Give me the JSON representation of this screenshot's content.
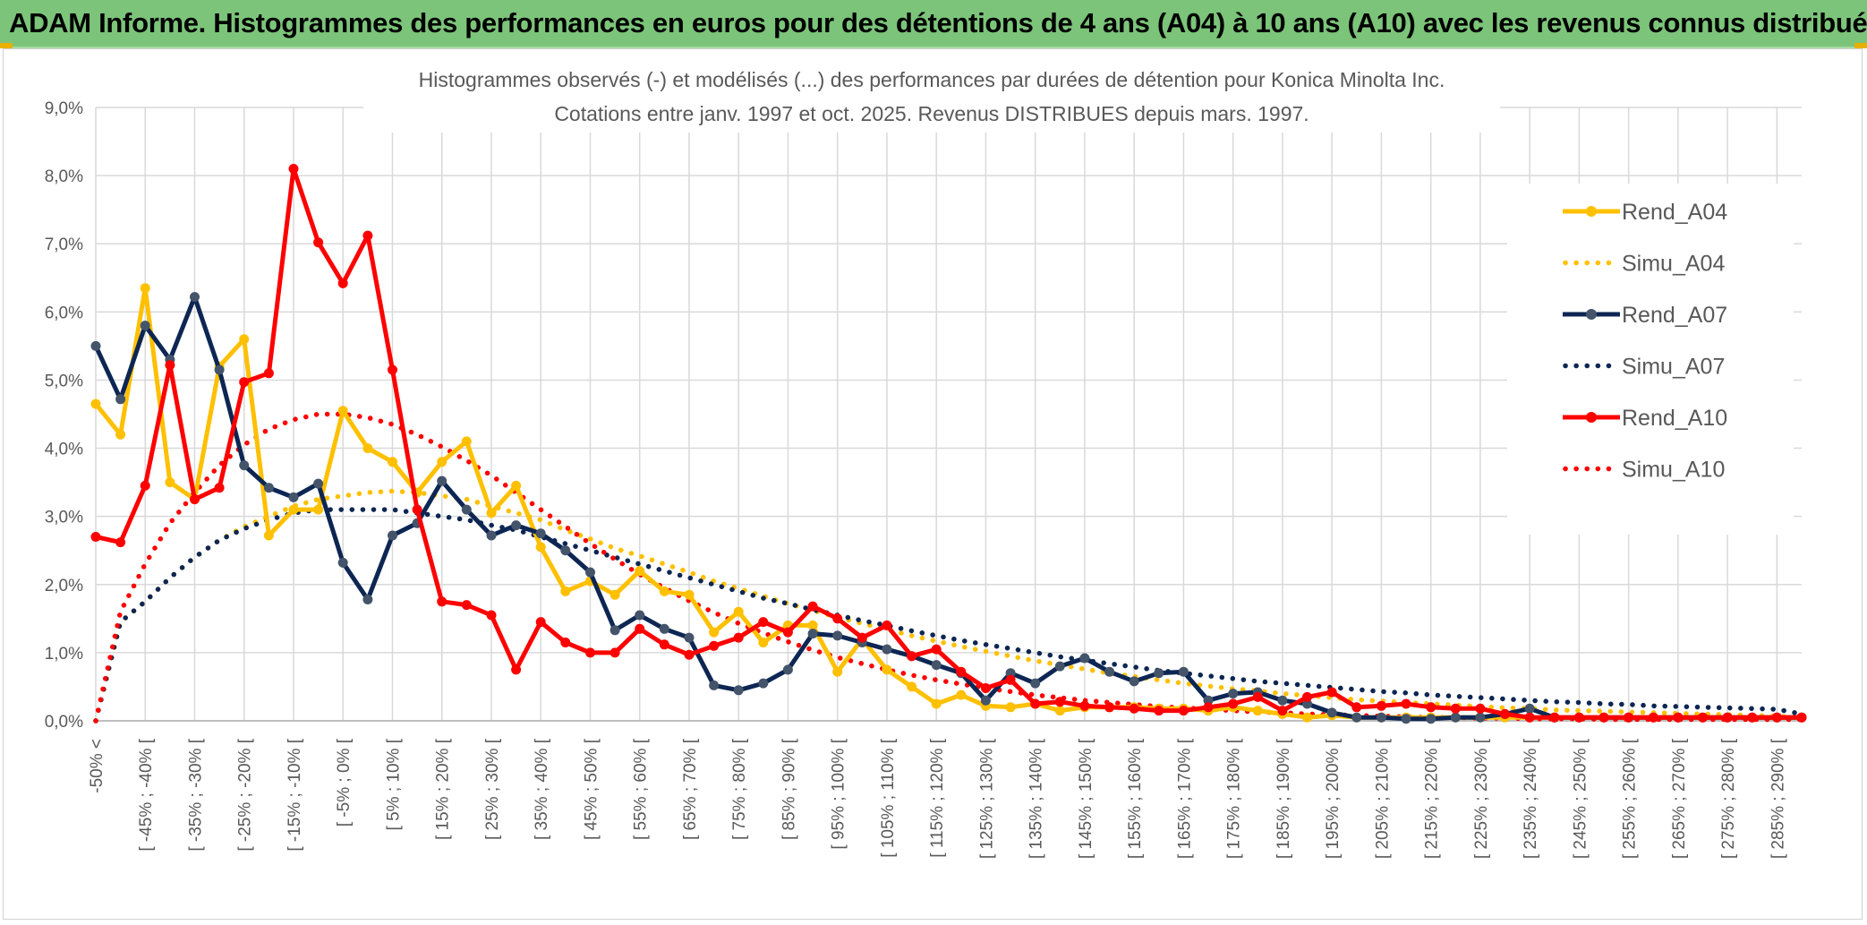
{
  "header": {
    "title": "ADAM Informe. Histogrammes des performances en euros pour des détentions de 4 ans (A04) à 10 ans (A10) avec les revenus connus distribués"
  },
  "chart_data": {
    "type": "line",
    "title": "Histogrammes observés (-) et modélisés (...) des performances par durées de détention pour Konica Minolta Inc.",
    "subtitle": "Cotations entre janv. 1997 et oct. 2025. Revenus DISTRIBUES depuis mars. 1997.",
    "xlabel": "",
    "ylabel": "",
    "ylim": [
      0,
      9
    ],
    "yticks": [
      "0,0%",
      "1,0%",
      "2,0%",
      "3,0%",
      "4,0%",
      "5,0%",
      "6,0%",
      "7,0%",
      "8,0%",
      "9,0%"
    ],
    "grid": true,
    "legend_position": "right",
    "tick_labels": [
      "-50% <",
      "[ -45% ; -40% [",
      "[ -35% ; -30% [",
      "[ -25% ; -20% [",
      "[ -15% ; -10% [",
      "[ -5% ; 0% [",
      "[ 5% ; 10% [",
      "[ 15% ; 20% [",
      "[ 25% ; 30% [",
      "[ 35% ; 40% [",
      "[ 45% ; 50% [",
      "[ 55% ; 60% [",
      "[ 65% ; 70% [",
      "[ 75% ; 80% [",
      "[ 85% ; 90% [",
      "[ 95% ; 100% [",
      "[ 105% ; 110% [",
      "[ 115% ; 120% [",
      "[ 125% ; 130% [",
      "[ 135% ; 140% [",
      "[ 145% ; 150% [",
      "[ 155% ; 160% [",
      "[ 165% ; 170% [",
      "[ 175% ; 180% [",
      "[ 185% ; 190% [",
      "[ 195% ; 200% [",
      "[ 205% ; 210% [",
      "[ 215% ; 220% [",
      "[ 225% ; 230% [",
      "[ 235% ; 240% [",
      "[ 245% ; 250% [",
      "[ 255% ; 260% [",
      "[ 265% ; 270% [",
      "[ 275% ; 280% [",
      "[ 285% ; 290% ["
    ],
    "series": [
      {
        "name": "Rend_A04",
        "color": "#ffc000",
        "style": "solid",
        "markers": true,
        "values": [
          4.65,
          4.2,
          6.35,
          3.5,
          3.25,
          5.2,
          5.6,
          2.72,
          3.1,
          3.1,
          4.55,
          4.0,
          3.8,
          3.35,
          3.8,
          4.1,
          3.05,
          3.45,
          2.55,
          1.9,
          2.05,
          1.85,
          2.2,
          1.9,
          1.85,
          1.3,
          1.6,
          1.15,
          1.4,
          1.4,
          0.72,
          1.2,
          0.75,
          0.5,
          0.25,
          0.38,
          0.22,
          0.2,
          0.25,
          0.15,
          0.2,
          0.2,
          0.2,
          0.18,
          0.18,
          0.15,
          0.2,
          0.15,
          0.1,
          0.05,
          0.08,
          0.05,
          0.05,
          0.05,
          0.05,
          0.05,
          0.05,
          0.05,
          0.05,
          0.05,
          0.05,
          0.05,
          0.05,
          0.05,
          0.05,
          0.05,
          0.05,
          0.05,
          0.05,
          0.05
        ]
      },
      {
        "name": "Simu_A04",
        "color": "#ffc000",
        "style": "dotted",
        "markers": false,
        "values": [
          0.0,
          1.45,
          1.75,
          2.1,
          2.4,
          2.65,
          2.85,
          3.0,
          3.15,
          3.25,
          3.3,
          3.35,
          3.37,
          3.35,
          3.3,
          3.25,
          3.15,
          3.05,
          2.95,
          2.8,
          2.67,
          2.53,
          2.42,
          2.3,
          2.18,
          2.05,
          1.94,
          1.83,
          1.72,
          1.62,
          1.52,
          1.43,
          1.34,
          1.25,
          1.17,
          1.09,
          1.02,
          0.95,
          0.88,
          0.82,
          0.76,
          0.7,
          0.65,
          0.6,
          0.55,
          0.51,
          0.47,
          0.44,
          0.4,
          0.37,
          0.34,
          0.31,
          0.29,
          0.27,
          0.25,
          0.23,
          0.21,
          0.19,
          0.18,
          0.16,
          0.15,
          0.14,
          0.13,
          0.12,
          0.11,
          0.1,
          0.09,
          0.08,
          0.07,
          0.05
        ]
      },
      {
        "name": "Rend_A07",
        "color": "#0d2653",
        "style": "solid",
        "markers": true,
        "values": [
          5.5,
          4.72,
          5.8,
          5.3,
          6.22,
          5.15,
          3.75,
          3.42,
          3.28,
          3.48,
          2.32,
          1.78,
          2.72,
          2.9,
          3.52,
          3.1,
          2.72,
          2.87,
          2.75,
          2.5,
          2.18,
          1.33,
          1.55,
          1.35,
          1.22,
          0.52,
          0.45,
          0.55,
          0.75,
          1.28,
          1.25,
          1.15,
          1.05,
          0.95,
          0.82,
          0.7,
          0.3,
          0.7,
          0.55,
          0.8,
          0.92,
          0.72,
          0.58,
          0.7,
          0.72,
          0.3,
          0.4,
          0.42,
          0.3,
          0.25,
          0.12,
          0.05,
          0.05,
          0.03,
          0.03,
          0.05,
          0.05,
          0.1,
          0.18,
          0.05,
          0.05,
          0.05,
          0.05,
          0.05,
          0.05,
          0.05,
          0.05,
          0.05,
          0.05,
          0.05
        ]
      },
      {
        "name": "Simu_A07",
        "color": "#0d2653",
        "style": "dotted",
        "markers": false,
        "values": [
          0.0,
          1.45,
          1.75,
          2.1,
          2.4,
          2.65,
          2.82,
          2.95,
          3.05,
          3.1,
          3.1,
          3.1,
          3.1,
          3.05,
          3.0,
          2.95,
          2.87,
          2.8,
          2.7,
          2.6,
          2.5,
          2.4,
          2.3,
          2.2,
          2.1,
          2.0,
          1.9,
          1.8,
          1.72,
          1.63,
          1.55,
          1.47,
          1.4,
          1.32,
          1.25,
          1.18,
          1.12,
          1.06,
          1.0,
          0.94,
          0.89,
          0.84,
          0.79,
          0.74,
          0.7,
          0.66,
          0.62,
          0.58,
          0.55,
          0.52,
          0.49,
          0.46,
          0.43,
          0.41,
          0.38,
          0.36,
          0.34,
          0.32,
          0.3,
          0.28,
          0.27,
          0.25,
          0.24,
          0.22,
          0.21,
          0.2,
          0.19,
          0.18,
          0.17,
          0.1
        ]
      },
      {
        "name": "Rend_A10",
        "color": "#ff0000",
        "style": "solid",
        "markers": true,
        "values": [
          2.7,
          2.62,
          3.45,
          5.22,
          3.25,
          3.42,
          4.97,
          5.1,
          8.1,
          7.02,
          6.42,
          7.12,
          5.15,
          3.1,
          1.75,
          1.7,
          1.55,
          0.75,
          1.45,
          1.15,
          1.0,
          1.0,
          1.35,
          1.12,
          0.97,
          1.1,
          1.22,
          1.45,
          1.3,
          1.68,
          1.5,
          1.22,
          1.4,
          0.95,
          1.05,
          0.72,
          0.48,
          0.6,
          0.25,
          0.28,
          0.22,
          0.2,
          0.18,
          0.15,
          0.15,
          0.2,
          0.25,
          0.35,
          0.15,
          0.35,
          0.42,
          0.2,
          0.22,
          0.25,
          0.2,
          0.18,
          0.18,
          0.1,
          0.05,
          0.05,
          0.05,
          0.05,
          0.05,
          0.05,
          0.05,
          0.05,
          0.05,
          0.05,
          0.05,
          0.05
        ]
      },
      {
        "name": "Simu_A10",
        "color": "#ff0000",
        "style": "dotted",
        "markers": false,
        "values": [
          0.0,
          1.6,
          2.3,
          2.9,
          3.35,
          3.75,
          4.05,
          4.28,
          4.42,
          4.5,
          4.5,
          4.45,
          4.35,
          4.2,
          4.02,
          3.82,
          3.6,
          3.35,
          3.1,
          2.85,
          2.6,
          2.37,
          2.15,
          1.95,
          1.76,
          1.59,
          1.43,
          1.29,
          1.16,
          1.04,
          0.93,
          0.84,
          0.75,
          0.67,
          0.6,
          0.54,
          0.48,
          0.43,
          0.38,
          0.34,
          0.3,
          0.27,
          0.24,
          0.21,
          0.19,
          0.17,
          0.15,
          0.13,
          0.12,
          0.1,
          0.09,
          0.08,
          0.07,
          0.06,
          0.05,
          0.05,
          0.04,
          0.04,
          0.03,
          0.03,
          0.03,
          0.02,
          0.02,
          0.02,
          0.02,
          0.02,
          0.02,
          0.02,
          0.02,
          0.02
        ]
      }
    ]
  }
}
